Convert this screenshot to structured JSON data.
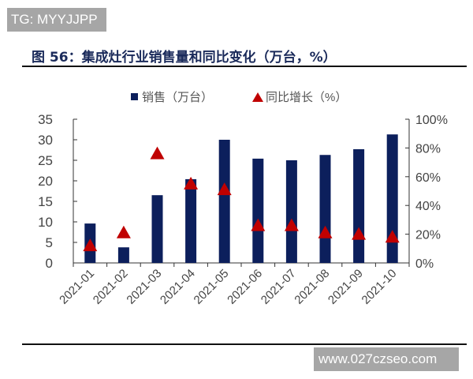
{
  "watermarks": {
    "top": "TG: MYYJJPP",
    "bottom": "www.027czseo.com"
  },
  "title": "图 56：集成灶行业销售量和同比变化（万台，%）",
  "chart_data": {
    "type": "bar+scatter",
    "categories": [
      "2021-01",
      "2021-02",
      "2021-03",
      "2021-04",
      "2021-05",
      "2021-06",
      "2021-07",
      "2021-08",
      "2021-09",
      "2021-10"
    ],
    "series": [
      {
        "name": "销售（万台）",
        "type": "bar",
        "axis": "left",
        "color": "#0c1f5c",
        "values": [
          9.6,
          3.8,
          16.5,
          20.4,
          30.0,
          25.4,
          25.0,
          26.3,
          27.7,
          31.3
        ]
      },
      {
        "name": "同比增长（%）",
        "type": "scatter",
        "marker": "triangle",
        "axis": "right",
        "color": "#c00000",
        "values": [
          12,
          21,
          76,
          55,
          51,
          26,
          26,
          21,
          20,
          18
        ]
      }
    ],
    "y_left": {
      "range": [
        0,
        35
      ],
      "ticks": [
        "0",
        "5",
        "10",
        "15",
        "20",
        "25",
        "30",
        "35"
      ]
    },
    "y_right": {
      "range": [
        0,
        100
      ],
      "ticks": [
        "0%",
        "20%",
        "40%",
        "60%",
        "80%",
        "100%"
      ]
    },
    "legend_position": "top",
    "grid": false
  }
}
